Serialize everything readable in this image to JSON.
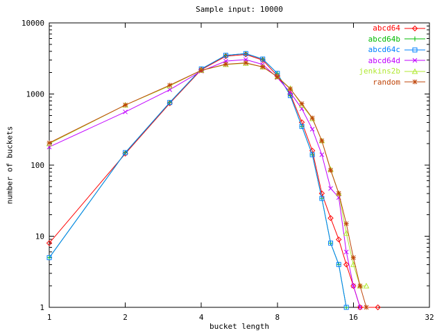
{
  "chart_data": {
    "type": "line",
    "title": "Sample input: 10000",
    "xlabel": "bucket length",
    "ylabel": "number of buckets",
    "xscale": "log2",
    "yscale": "log10",
    "xlim": [
      1,
      32
    ],
    "ylim": [
      1,
      10000
    ],
    "xticks": [
      1,
      2,
      4,
      8,
      16,
      32
    ],
    "yticks": [
      1,
      10,
      100,
      1000,
      10000
    ],
    "grid": false,
    "legend_position": "top-right-inside",
    "series": [
      {
        "name": "abcd64",
        "color": "#ff0000",
        "marker": "diamond",
        "points": [
          [
            1,
            8
          ],
          [
            2,
            145
          ],
          [
            3,
            740
          ],
          [
            4,
            2200
          ],
          [
            5,
            3400
          ],
          [
            6,
            3600
          ],
          [
            7,
            3000
          ],
          [
            8,
            1800
          ],
          [
            9,
            1000
          ],
          [
            10,
            400
          ],
          [
            11,
            160
          ],
          [
            12,
            40
          ],
          [
            13,
            18
          ],
          [
            14,
            9
          ],
          [
            15,
            4
          ],
          [
            16,
            2
          ],
          [
            17,
            1
          ],
          [
            20,
            1
          ]
        ]
      },
      {
        "name": "abcd64b",
        "color": "#00bb00",
        "marker": "plus",
        "points": [
          [
            1,
            5
          ],
          [
            2,
            150
          ],
          [
            3,
            760
          ],
          [
            4,
            2250
          ],
          [
            5,
            3500
          ],
          [
            6,
            3700
          ],
          [
            7,
            3100
          ],
          [
            8,
            1950
          ],
          [
            9,
            950
          ],
          [
            10,
            350
          ],
          [
            11,
            140
          ],
          [
            12,
            34
          ],
          [
            13,
            8
          ],
          [
            14,
            4
          ],
          [
            15,
            1
          ]
        ]
      },
      {
        "name": "abcd64c",
        "color": "#0080ff",
        "marker": "square",
        "points": [
          [
            1,
            5
          ],
          [
            2,
            150
          ],
          [
            3,
            760
          ],
          [
            4,
            2250
          ],
          [
            5,
            3500
          ],
          [
            6,
            3700
          ],
          [
            7,
            3100
          ],
          [
            8,
            1950
          ],
          [
            9,
            950
          ],
          [
            10,
            350
          ],
          [
            11,
            140
          ],
          [
            12,
            34
          ],
          [
            13,
            8
          ],
          [
            14,
            4
          ],
          [
            15,
            1
          ]
        ]
      },
      {
        "name": "abcd64d",
        "color": "#c000ff",
        "marker": "cross",
        "points": [
          [
            1,
            180
          ],
          [
            2,
            560
          ],
          [
            3,
            1150
          ],
          [
            4,
            2100
          ],
          [
            5,
            2900
          ],
          [
            6,
            3050
          ],
          [
            7,
            2600
          ],
          [
            8,
            1700
          ],
          [
            9,
            1050
          ],
          [
            10,
            620
          ],
          [
            11,
            320
          ],
          [
            12,
            140
          ],
          [
            13,
            47
          ],
          [
            14,
            35
          ],
          [
            15,
            6
          ],
          [
            16,
            2
          ],
          [
            17,
            1
          ]
        ]
      },
      {
        "name": "jenkins2b",
        "color": "#b0e832",
        "marker": "triangle",
        "points": [
          [
            1,
            200
          ],
          [
            2,
            700
          ],
          [
            3,
            1300
          ],
          [
            4,
            2150
          ],
          [
            5,
            2600
          ],
          [
            6,
            2700
          ],
          [
            7,
            2400
          ],
          [
            8,
            1750
          ],
          [
            9,
            1200
          ],
          [
            10,
            700
          ],
          [
            11,
            450
          ],
          [
            12,
            220
          ],
          [
            13,
            87
          ],
          [
            14,
            40
          ],
          [
            15,
            11
          ],
          [
            16,
            4
          ],
          [
            17,
            2
          ],
          [
            18,
            2
          ]
        ]
      },
      {
        "name": "random",
        "color": "#bf4408",
        "marker": "asterisk",
        "points": [
          [
            1,
            205
          ],
          [
            2,
            700
          ],
          [
            3,
            1330
          ],
          [
            4,
            2150
          ],
          [
            5,
            2620
          ],
          [
            6,
            2740
          ],
          [
            7,
            2400
          ],
          [
            8,
            1750
          ],
          [
            9,
            1180
          ],
          [
            10,
            730
          ],
          [
            11,
            460
          ],
          [
            12,
            220
          ],
          [
            13,
            85
          ],
          [
            14,
            40
          ],
          [
            15,
            15
          ],
          [
            16,
            5
          ],
          [
            17,
            2
          ],
          [
            18,
            1
          ]
        ]
      }
    ]
  }
}
